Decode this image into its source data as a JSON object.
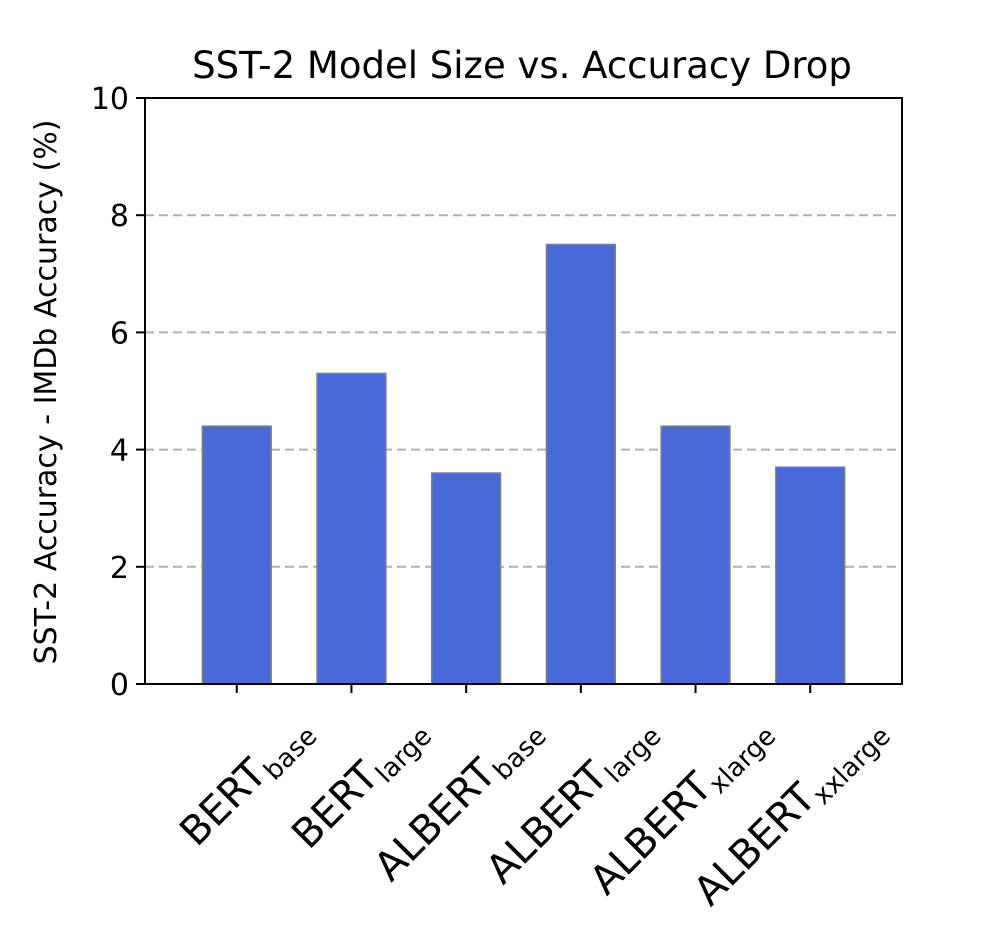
{
  "chart_data": {
    "type": "bar",
    "title": "SST-2 Model Size vs. Accuracy Drop",
    "xlabel": "",
    "ylabel": "SST-2 Accuracy - IMDb Accuracy (%)",
    "ylim": [
      0,
      10
    ],
    "yticks": [
      "0",
      "2",
      "4",
      "6",
      "8",
      "10"
    ],
    "grid": "y-dashed",
    "bar_color": "#4a69d9",
    "bar_edge_color": "#808080",
    "grid_color": "#b0b0b0",
    "categories": [
      {
        "main": "BERT",
        "sub": "base"
      },
      {
        "main": "BERT",
        "sub": "large"
      },
      {
        "main": "ALBERT",
        "sub": "base"
      },
      {
        "main": "ALBERT",
        "sub": "large"
      },
      {
        "main": "ALBERT",
        "sub": "xlarge"
      },
      {
        "main": "ALBERT",
        "sub": "xxlarge"
      }
    ],
    "values": [
      4.4,
      5.3,
      3.6,
      7.5,
      4.4,
      3.7
    ]
  }
}
